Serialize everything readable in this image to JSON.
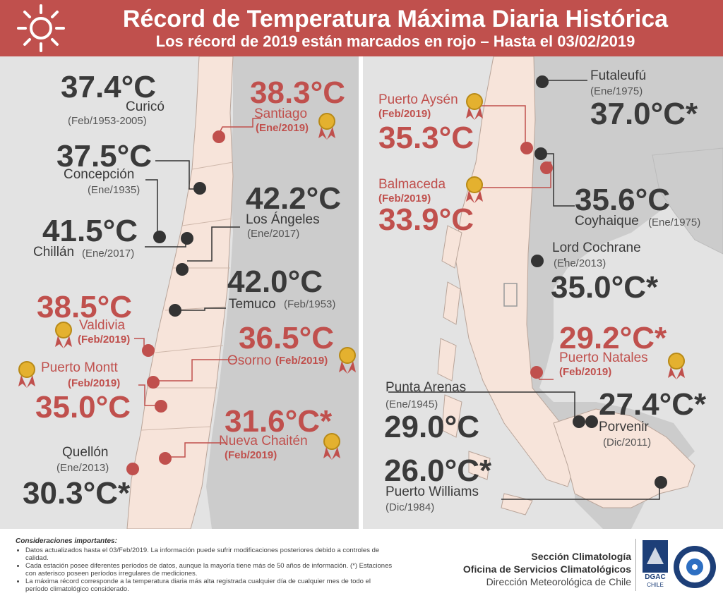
{
  "header": {
    "title": "Récord de Temperatura Máxima Diaria Histórica",
    "subtitle": "Los récord de 2019 están marcados en rojo – Hasta el 03/02/2019",
    "icon": "sun-icon"
  },
  "colors": {
    "accent": "#c0504d",
    "land": "#f7e4da",
    "neighbor": "#cccccc",
    "sea": "#e3e3e3",
    "dark": "#3a3a3a"
  },
  "stations": {
    "curico": {
      "temp": "37.4°C",
      "name": "Curicó",
      "date": "(Feb/1953-2005)"
    },
    "concepcion": {
      "temp": "37.5°C",
      "name": "Concepción",
      "date": "(Ene/1935)"
    },
    "chillan": {
      "temp": "41.5°C",
      "name": "Chillán",
      "date": "(Ene/2017)"
    },
    "santiago": {
      "temp": "38.3°C",
      "name": "Santiago",
      "date": "(Ene/2019)"
    },
    "losangeles": {
      "temp": "42.2°C",
      "name": "Los Ángeles",
      "date": "(Ene/2017)"
    },
    "temuco": {
      "temp": "42.0°C",
      "name": "Temuco",
      "date": "(Feb/1953)"
    },
    "valdivia": {
      "temp": "38.5°C",
      "name": "Valdivia",
      "date": "(Feb/2019)"
    },
    "osorno": {
      "temp": "36.5°C",
      "name": "Osorno",
      "date": "(Feb/2019)"
    },
    "puertomontt": {
      "temp": "35.0°C",
      "name": "Puerto Montt",
      "date": "(Feb/2019)"
    },
    "chaiten": {
      "temp": "31.6°C*",
      "name": "Nueva Chaitén",
      "date": "(Feb/2019)"
    },
    "quellon": {
      "temp": "30.3°C*",
      "name": "Quellón",
      "date": "(Ene/2013)"
    },
    "aysen": {
      "temp": "35.3°C",
      "name": "Puerto Aysén",
      "date": "(Feb/2019)"
    },
    "futaleufu": {
      "temp": "37.0°C*",
      "name": "Futaleufú",
      "date": "(Ene/1975)"
    },
    "balmaceda": {
      "temp": "33.9°C",
      "name": "Balmaceda",
      "date": "(Feb/2019)"
    },
    "coyhaique": {
      "temp": "35.6°C",
      "name": "Coyhaique",
      "date": "(Ene/1975)"
    },
    "cochrane": {
      "temp": "35.0°C*",
      "name": "Lord Cochrane",
      "date": "(Ene/2013)"
    },
    "natales": {
      "temp": "29.2°C*",
      "name": "Puerto Natales",
      "date": "(Feb/2019)"
    },
    "arenas": {
      "temp": "29.0°C",
      "name": "Punta Arenas",
      "date": "(Ene/1945)"
    },
    "porvenir": {
      "temp": "27.4°C*",
      "name": "Porvenir",
      "date": "(Dic/2011)"
    },
    "williams": {
      "temp": "26.0°C*",
      "name": "Puerto Williams",
      "date": "(Dic/1984)"
    }
  },
  "footer": {
    "considerations_title": "Consideraciones importantes:",
    "notes": [
      "Datos actualizados hasta el 03/Feb/2019. La información puede sufrir modificaciones posteriores debido a controles de calidad.",
      "Cada estación posee diferentes períodos de datos, aunque la mayoría tiene más de 50 años de información. (*) Estaciones con asterisco poseen períodos irregulares de mediciones.",
      "La máxima récord corresponde a la temperatura diaria más alta registrada cualquier día de cualquier mes de todo el período climatológico considerado."
    ],
    "org_line1": "Sección Climatología",
    "org_line2": "Oficina de Servicios Climatológicos",
    "org_line3": "Dirección Meteorológica de Chile",
    "logo1_text": "DGAC",
    "logo1_sub": "CHILE"
  }
}
